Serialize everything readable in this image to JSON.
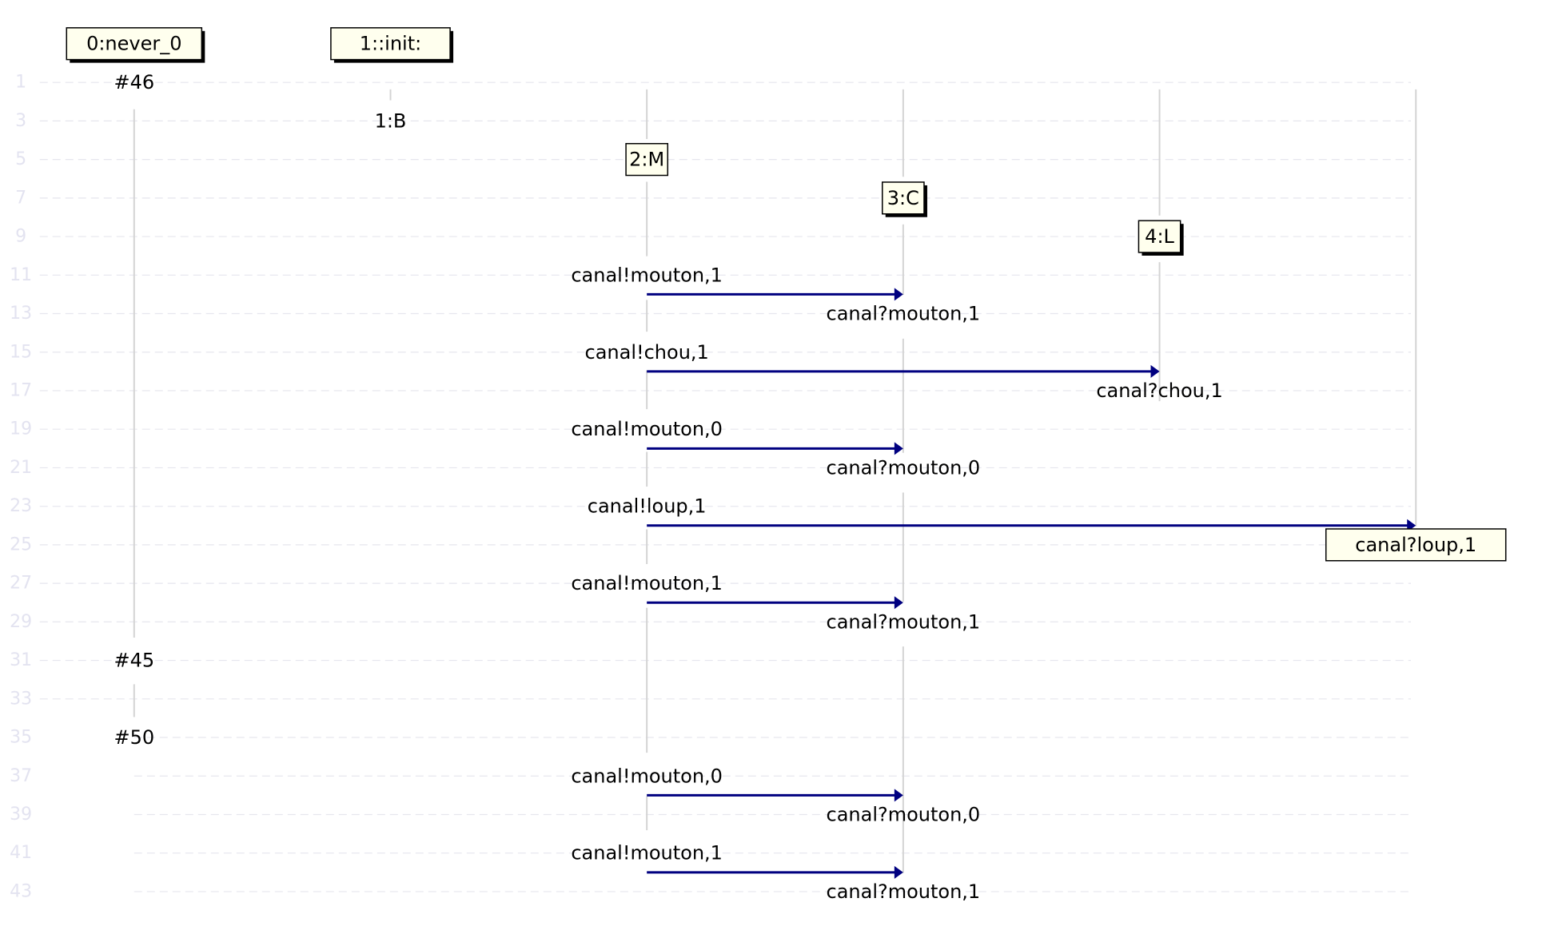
{
  "colors": {
    "background": "#ffffff",
    "row_number": "#e3e3f0",
    "grid_line": "#e6e6ee",
    "lifeline": "#d4d4d4",
    "box_fill": "#ffffee",
    "box_border": "#000000",
    "box_shadow": "#000000",
    "arrow": "#000080",
    "text": "#000000"
  },
  "row_labels": [
    "1",
    "3",
    "5",
    "7",
    "9",
    "11",
    "13",
    "15",
    "17",
    "19",
    "21",
    "23",
    "25",
    "27",
    "29",
    "31",
    "33",
    "35",
    "37",
    "39",
    "41",
    "43"
  ],
  "header_boxes": [
    {
      "label": "0:never_0"
    },
    {
      "label": "1::init:"
    }
  ],
  "state_labels": [
    {
      "label": "#46"
    },
    {
      "label": "#45"
    },
    {
      "label": "#50"
    }
  ],
  "process_labels": [
    {
      "label": "1:B"
    }
  ],
  "process_boxes": [
    {
      "label": "2:M"
    },
    {
      "label": "3:C"
    },
    {
      "label": "4:L"
    }
  ],
  "messages": [
    {
      "send": "canal!mouton,1",
      "recv": "canal?mouton,1"
    },
    {
      "send": "canal!chou,1",
      "recv": "canal?chou,1"
    },
    {
      "send": "canal!mouton,0",
      "recv": "canal?mouton,0"
    },
    {
      "send": "canal!loup,1",
      "recv": "canal?loup,1"
    },
    {
      "send": "canal!mouton,1",
      "recv": "canal?mouton,1"
    },
    {
      "send": "canal!mouton,0",
      "recv": "canal?mouton,0"
    },
    {
      "send": "canal!mouton,1",
      "recv": "canal?mouton,1"
    }
  ]
}
